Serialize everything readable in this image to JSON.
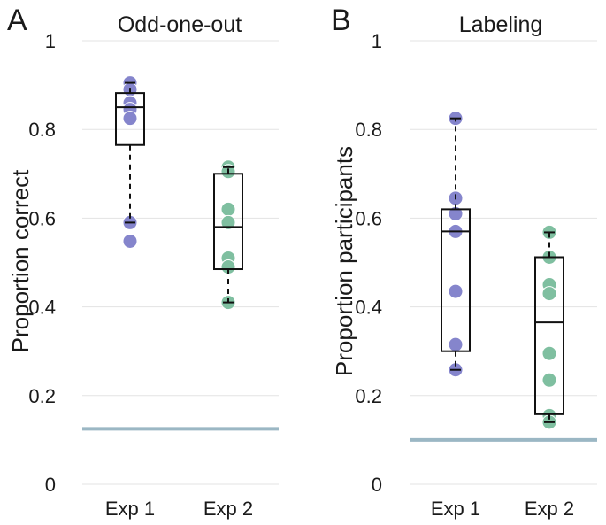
{
  "chart_data": [
    {
      "type": "box",
      "panel_letter": "A",
      "title": "Odd-one-out",
      "xlabel": "",
      "ylabel": "Proportion correct",
      "ylim": [
        0,
        1
      ],
      "yticks": [
        0,
        0.2,
        0.4,
        0.6,
        0.8,
        1
      ],
      "ytick_labels": [
        "0",
        "0.2",
        "0.4",
        "0.6",
        "0.8",
        "1"
      ],
      "grid": "horizontal",
      "categories": [
        "Exp 1",
        "Exp 2"
      ],
      "chance_level": 0.125,
      "chance_color": "#9bb7c4",
      "series": [
        {
          "name": "Exp 1",
          "color": "#8585cc",
          "points": [
            0.905,
            0.89,
            0.86,
            0.845,
            0.825,
            0.59,
            0.548
          ],
          "box": {
            "whisker_low": 0.59,
            "q1": 0.765,
            "median": 0.85,
            "q3": 0.882,
            "whisker_high": 0.905
          }
        },
        {
          "name": "Exp 2",
          "color": "#7fbfa0",
          "points": [
            0.715,
            0.705,
            0.62,
            0.59,
            0.51,
            0.49,
            0.41
          ],
          "box": {
            "whisker_low": 0.41,
            "q1": 0.485,
            "median": 0.58,
            "q3": 0.7,
            "whisker_high": 0.715
          }
        }
      ]
    },
    {
      "type": "box",
      "panel_letter": "B",
      "title": "Labeling",
      "xlabel": "",
      "ylabel": "Proportion participants",
      "ylim": [
        0,
        1
      ],
      "yticks": [
        0,
        0.2,
        0.4,
        0.6,
        0.8,
        1
      ],
      "ytick_labels": [
        "0",
        "0.2",
        "0.4",
        "0.6",
        "0.8",
        "1"
      ],
      "grid": "horizontal",
      "categories": [
        "Exp 1",
        "Exp 2"
      ],
      "chance_level": 0.1,
      "chance_color": "#9bb7c4",
      "series": [
        {
          "name": "Exp 1",
          "color": "#8585cc",
          "points": [
            0.825,
            0.645,
            0.61,
            0.57,
            0.435,
            0.315,
            0.258
          ],
          "box": {
            "whisker_low": 0.258,
            "q1": 0.3,
            "median": 0.57,
            "q3": 0.62,
            "whisker_high": 0.825
          }
        },
        {
          "name": "Exp 2",
          "color": "#7fbfa0",
          "points": [
            0.568,
            0.512,
            0.45,
            0.43,
            0.295,
            0.235,
            0.155,
            0.14
          ],
          "box": {
            "whisker_low": 0.14,
            "q1": 0.158,
            "median": 0.365,
            "q3": 0.512,
            "whisker_high": 0.568
          }
        }
      ]
    }
  ]
}
